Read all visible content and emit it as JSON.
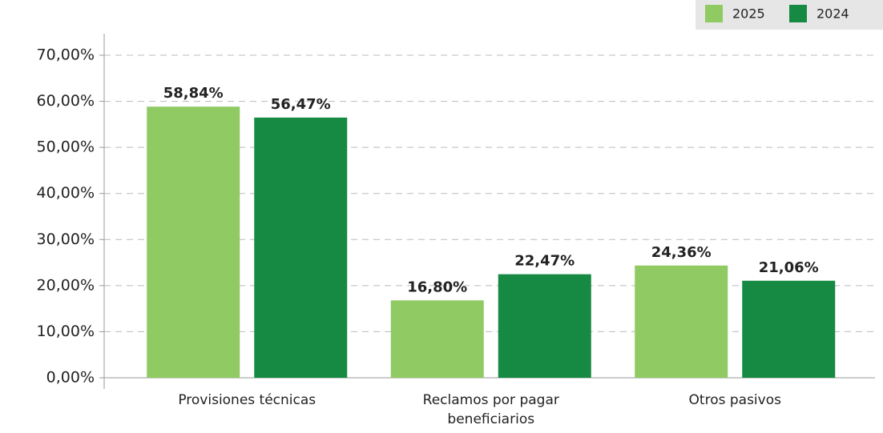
{
  "chart_data": {
    "type": "bar",
    "categories": [
      "Provisiones técnicas",
      "Reclamos por pagar beneficiarios",
      "Otros pasivos"
    ],
    "series": [
      {
        "name": "2025",
        "color": "#8fca62",
        "values": [
          58.84,
          16.8,
          24.36
        ],
        "value_labels": [
          "58,84%",
          "16,80%",
          "24,36%"
        ]
      },
      {
        "name": "2024",
        "color": "#168a43",
        "values": [
          56.47,
          22.47,
          21.06
        ],
        "value_labels": [
          "56,47%",
          "22,47%",
          "21,06%"
        ]
      }
    ],
    "ylim": [
      0,
      70
    ],
    "yticks": [
      {
        "value": 0,
        "label": "0,00%"
      },
      {
        "value": 10,
        "label": "10,00%"
      },
      {
        "value": 20,
        "label": "20,00%"
      },
      {
        "value": 30,
        "label": "30,00%"
      },
      {
        "value": 40,
        "label": "40,00%"
      },
      {
        "value": 50,
        "label": "50,00%"
      },
      {
        "value": 60,
        "label": "60,00%"
      },
      {
        "value": 70,
        "label": "70,00%"
      }
    ],
    "grid": true,
    "legend": "top-right"
  }
}
